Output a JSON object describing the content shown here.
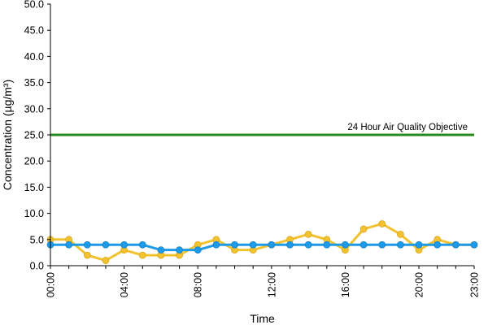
{
  "chart_data": {
    "type": "line",
    "xlabel": "Time",
    "ylabel": "Concentration (µg/m³)",
    "ylim": [
      0,
      50
    ],
    "y_ticks": [
      0,
      5,
      10,
      15,
      20,
      25,
      30,
      35,
      40,
      45,
      50
    ],
    "y_tick_labels": [
      "0.0",
      "5.0",
      "10.0",
      "15.0",
      "20.0",
      "25.0",
      "30.0",
      "35.0",
      "40.0",
      "45.0",
      "50.0"
    ],
    "x": [
      0,
      1,
      2,
      3,
      4,
      5,
      6,
      7,
      8,
      9,
      10,
      11,
      12,
      13,
      14,
      15,
      16,
      17,
      18,
      19,
      20,
      21,
      22,
      23
    ],
    "x_tick_positions": [
      0,
      4,
      8,
      12,
      16,
      20,
      23
    ],
    "x_tick_labels": [
      "00:00",
      "04:00",
      "08:00",
      "12:00",
      "16:00",
      "20:00",
      "23:00"
    ],
    "grid": false,
    "series": [
      {
        "color": "#f2c230",
        "values": [
          5,
          5,
          2,
          1,
          3,
          2,
          2,
          2,
          4,
          5,
          3,
          3,
          4,
          5,
          6,
          5,
          3,
          7,
          8,
          6,
          3,
          5,
          4,
          4
        ]
      },
      {
        "color": "#1e9be8",
        "values": [
          4,
          4,
          4,
          4,
          4,
          4,
          3,
          3,
          3,
          4,
          4,
          4,
          4,
          4,
          4,
          4,
          4,
          4,
          4,
          4,
          4,
          4,
          4,
          4
        ]
      }
    ],
    "reference_line": {
      "label": "24 Hour Air Quality Objective",
      "value": 25,
      "color": "#2b8a1f"
    }
  }
}
